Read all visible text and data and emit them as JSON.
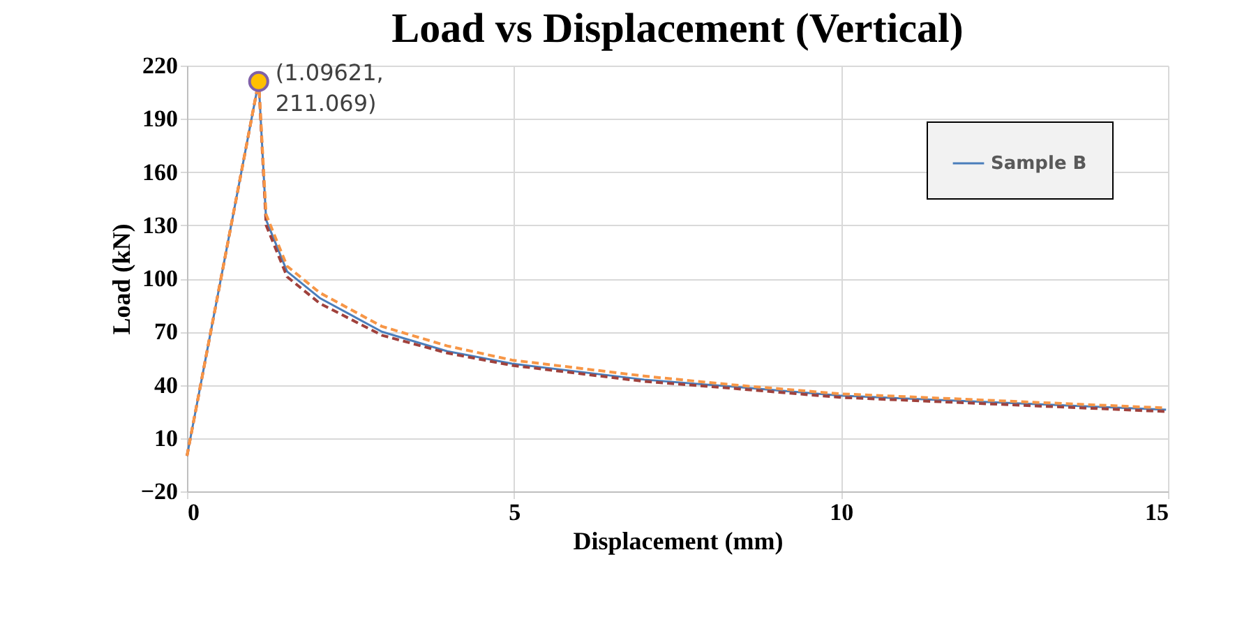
{
  "chart_data": {
    "type": "line",
    "title": "Load vs Displacement (Vertical)",
    "xlabel": "Displacement (mm)",
    "ylabel": "Load (kN)",
    "xlim": [
      0,
      15
    ],
    "xticks": [
      0,
      5,
      10,
      15
    ],
    "ylim": [
      -20,
      220
    ],
    "yticks": [
      -20,
      10,
      40,
      70,
      100,
      130,
      160,
      190,
      220
    ],
    "grid": true,
    "legend": "top right",
    "series": [
      {
        "name": "Sample B",
        "color": "#4a7ebb",
        "line_style": "solid",
        "x": [
          0,
          1.09621,
          1.21,
          1.53,
          2.03,
          2.98,
          3.98,
          4.97,
          6.99,
          8.36,
          9.98,
          14.97
        ],
        "values": [
          0,
          211.069,
          133,
          104,
          89,
          70,
          59,
          52,
          43,
          39,
          34,
          26
        ]
      },
      {
        "color": "#a0413c",
        "line_style": "dashed",
        "x": [
          0,
          1.09621,
          1.21,
          1.53,
          2.03,
          2.98,
          3.98,
          4.97,
          6.99,
          8.36,
          9.98,
          14.97
        ],
        "values": [
          0,
          211.069,
          130,
          101,
          86,
          68,
          58,
          51,
          42,
          38,
          33,
          25
        ]
      },
      {
        "color": "#f79646",
        "line_style": "dashed",
        "x": [
          0,
          1.09621,
          1.21,
          1.53,
          2.03,
          2.98,
          3.98,
          4.97,
          6.99,
          8.36,
          9.98,
          14.97
        ],
        "values": [
          0,
          211.069,
          136,
          107,
          92,
          73,
          62,
          54,
          45,
          40,
          35,
          27
        ]
      },
      {
        "type": "scatter",
        "marker": "circle",
        "color": "#ffc000",
        "x": [
          1.09621
        ],
        "values": [
          211.069
        ]
      }
    ],
    "annotations": [
      {
        "text": "(1.09621, 211.069)",
        "x": 1.09621,
        "y": 211.069
      }
    ]
  }
}
